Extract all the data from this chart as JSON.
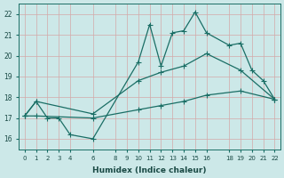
{
  "title": "",
  "xlabel": "Humidex (Indice chaleur)",
  "ylabel": "",
  "bg_color": "#cce8e8",
  "grid_color": "#d4a8a8",
  "line_color": "#1a6e65",
  "xlim": [
    -0.5,
    22.5
  ],
  "ylim": [
    15.5,
    22.5
  ],
  "xticks": [
    0,
    1,
    2,
    3,
    4,
    6,
    8,
    9,
    10,
    11,
    12,
    13,
    14,
    15,
    16,
    18,
    19,
    20,
    21,
    22
  ],
  "yticks": [
    16,
    17,
    18,
    19,
    20,
    21,
    22
  ],
  "line1_x": [
    0,
    1,
    2,
    3,
    4,
    6,
    10,
    11,
    12,
    13,
    14,
    15,
    16,
    18,
    19,
    20,
    21,
    22
  ],
  "line1_y": [
    17.1,
    17.8,
    17.0,
    17.0,
    16.2,
    16.0,
    19.7,
    21.5,
    19.5,
    21.1,
    21.2,
    22.1,
    21.1,
    20.5,
    20.6,
    19.3,
    18.8,
    17.9
  ],
  "line2_x": [
    0,
    1,
    6,
    10,
    12,
    14,
    16,
    19,
    22
  ],
  "line2_y": [
    17.1,
    17.8,
    17.2,
    18.8,
    19.2,
    19.5,
    20.1,
    19.3,
    17.9
  ],
  "line3_x": [
    0,
    1,
    6,
    10,
    12,
    14,
    16,
    19,
    22
  ],
  "line3_y": [
    17.1,
    17.1,
    17.0,
    17.4,
    17.6,
    17.8,
    18.1,
    18.3,
    17.9
  ]
}
